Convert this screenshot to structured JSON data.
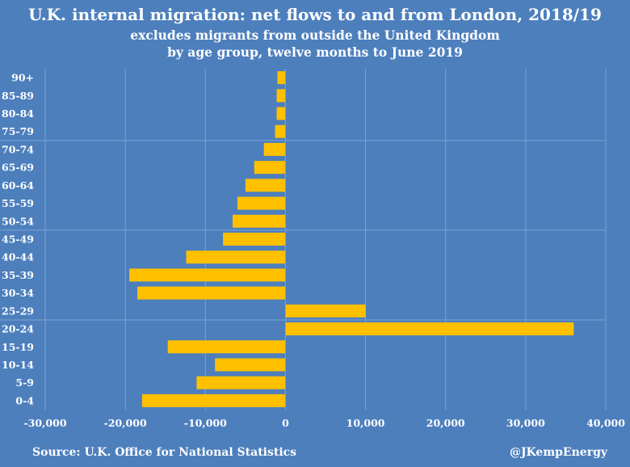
{
  "header": {
    "title": "U.K. internal migration: net flows to and from London, 2018/19",
    "subtitle_line1": "excludes migrants from outside the United Kingdom",
    "subtitle_line2": "by age group, twelve months to June 2019"
  },
  "footer": {
    "source": "Source: U.K. Office for National Statistics",
    "handle": "@JKempEnergy"
  },
  "colors": {
    "background": "#4d7fbd",
    "bar": "#ffc000",
    "text": "#ffffff",
    "grid": "#7da3d3"
  },
  "chart_data": {
    "type": "bar",
    "orientation": "horizontal",
    "categories": [
      "90+",
      "85-89",
      "80-84",
      "75-79",
      "70-74",
      "65-69",
      "60-64",
      "55-59",
      "50-54",
      "45-49",
      "40-44",
      "35-39",
      "30-34",
      "25-29",
      "20-24",
      "15-19",
      "10-14",
      "5-9",
      "0-4"
    ],
    "values": [
      -1000,
      -1100,
      -1100,
      -1300,
      -2700,
      -3900,
      -5000,
      -6000,
      -6600,
      -7800,
      -12400,
      -19500,
      -18500,
      10000,
      36000,
      -14700,
      -8800,
      -11100,
      -17900
    ],
    "xlim": [
      -30000,
      40000
    ],
    "xticks": [
      -30000,
      -20000,
      -10000,
      0,
      10000,
      20000,
      30000,
      40000
    ],
    "xtick_labels": [
      "-30,000",
      "-20,000",
      "-10,000",
      "0",
      "10,000",
      "20,000",
      "30,000",
      "40,000"
    ],
    "grid": "vertical",
    "group_separators_after": [
      "75-79",
      "50-54",
      "25-29"
    ]
  }
}
